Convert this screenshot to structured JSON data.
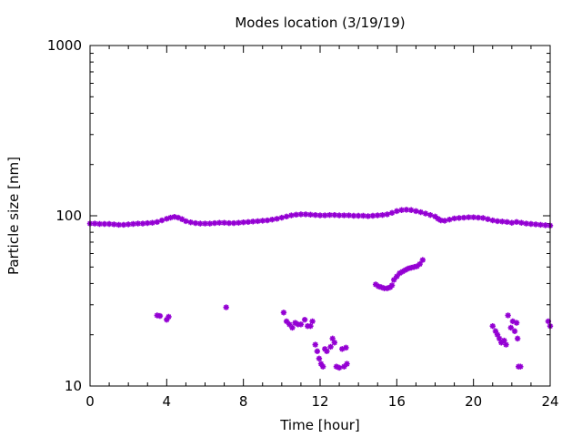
{
  "chart_data": {
    "type": "scatter",
    "title": "Modes location (3/19/19)",
    "xlabel": "Time [hour]",
    "ylabel": "Particle size [nm]",
    "xlim": [
      0,
      24
    ],
    "ylim": [
      10,
      1000
    ],
    "yscale": "log",
    "xticks": [
      0,
      4,
      8,
      12,
      16,
      20,
      24
    ],
    "xtick_labels": [
      "0",
      "4",
      "8",
      "12",
      "16",
      "20",
      "24"
    ],
    "yticks": [
      10,
      100,
      1000
    ],
    "ytick_labels": [
      "10",
      "100",
      "1000"
    ],
    "grid": false,
    "legend": "none",
    "marker_color": "#9400d3",
    "series": [
      {
        "points": [
          [
            0.0,
            90
          ],
          [
            0.25,
            90
          ],
          [
            0.5,
            89.5
          ],
          [
            0.75,
            89.5
          ],
          [
            1.0,
            89.5
          ],
          [
            1.25,
            89
          ],
          [
            1.5,
            88.5
          ],
          [
            1.75,
            88.5
          ],
          [
            2.0,
            89
          ],
          [
            2.25,
            89.5
          ],
          [
            2.5,
            90
          ],
          [
            2.75,
            90
          ],
          [
            3.0,
            90.5
          ],
          [
            3.25,
            91
          ],
          [
            3.5,
            92
          ],
          [
            3.75,
            94
          ],
          [
            4.0,
            96
          ],
          [
            4.2,
            97.5
          ],
          [
            4.4,
            98.5
          ],
          [
            4.6,
            97.5
          ],
          [
            4.8,
            95.5
          ],
          [
            5.0,
            93
          ],
          [
            5.25,
            91.5
          ],
          [
            5.5,
            90.5
          ],
          [
            5.75,
            90
          ],
          [
            6.0,
            90
          ],
          [
            6.25,
            90
          ],
          [
            6.5,
            90.5
          ],
          [
            6.75,
            91
          ],
          [
            7.0,
            91
          ],
          [
            7.25,
            90.5
          ],
          [
            7.5,
            90.5
          ],
          [
            7.75,
            91
          ],
          [
            8.0,
            91.5
          ],
          [
            8.25,
            92
          ],
          [
            8.5,
            92.5
          ],
          [
            8.75,
            93
          ],
          [
            9.0,
            93.5
          ],
          [
            9.25,
            94
          ],
          [
            9.5,
            95
          ],
          [
            9.75,
            96
          ],
          [
            10.0,
            97.5
          ],
          [
            10.25,
            99
          ],
          [
            10.5,
            100.5
          ],
          [
            10.75,
            101.5
          ],
          [
            11.0,
            102
          ],
          [
            11.25,
            102
          ],
          [
            11.5,
            101.5
          ],
          [
            11.75,
            101
          ],
          [
            12.0,
            100.5
          ],
          [
            12.25,
            100.5
          ],
          [
            12.5,
            101
          ],
          [
            12.75,
            101
          ],
          [
            13.0,
            100.5
          ],
          [
            13.25,
            100.5
          ],
          [
            13.5,
            100.5
          ],
          [
            13.75,
            100
          ],
          [
            14.0,
            100
          ],
          [
            14.25,
            100
          ],
          [
            14.5,
            99.5
          ],
          [
            14.75,
            100
          ],
          [
            15.0,
            100.5
          ],
          [
            15.25,
            101
          ],
          [
            15.5,
            102
          ],
          [
            15.75,
            104
          ],
          [
            16.0,
            106.5
          ],
          [
            16.25,
            108
          ],
          [
            16.5,
            108.5
          ],
          [
            16.75,
            108
          ],
          [
            17.0,
            106.5
          ],
          [
            17.25,
            105
          ],
          [
            17.5,
            103
          ],
          [
            17.75,
            101
          ],
          [
            18.0,
            99
          ],
          [
            18.15,
            96
          ],
          [
            18.3,
            94
          ],
          [
            18.5,
            93.5
          ],
          [
            18.75,
            95
          ],
          [
            19.0,
            96.5
          ],
          [
            19.25,
            97
          ],
          [
            19.5,
            97.5
          ],
          [
            19.75,
            98
          ],
          [
            20.0,
            98
          ],
          [
            20.25,
            97.5
          ],
          [
            20.5,
            97
          ],
          [
            20.75,
            95.5
          ],
          [
            21.0,
            94
          ],
          [
            21.25,
            93
          ],
          [
            21.5,
            92.5
          ],
          [
            21.75,
            92
          ],
          [
            22.0,
            91
          ],
          [
            22.25,
            92
          ],
          [
            22.5,
            91
          ],
          [
            22.75,
            90
          ],
          [
            23.0,
            89.5
          ],
          [
            23.25,
            89
          ],
          [
            23.5,
            88.5
          ],
          [
            23.75,
            88
          ],
          [
            24.0,
            87.5
          ],
          [
            3.5,
            26
          ],
          [
            3.65,
            25.8
          ],
          [
            4.0,
            24.5
          ],
          [
            4.1,
            25.5
          ],
          [
            7.1,
            29
          ],
          [
            10.1,
            27
          ],
          [
            10.25,
            24
          ],
          [
            10.4,
            23
          ],
          [
            10.55,
            22
          ],
          [
            10.7,
            23.5
          ],
          [
            10.85,
            23
          ],
          [
            11.0,
            23
          ],
          [
            11.2,
            24.5
          ],
          [
            11.35,
            22.5
          ],
          [
            11.5,
            22.5
          ],
          [
            11.6,
            24
          ],
          [
            11.75,
            17.5
          ],
          [
            11.85,
            16
          ],
          [
            11.95,
            14.5
          ],
          [
            12.05,
            13.5
          ],
          [
            12.15,
            13
          ],
          [
            12.25,
            16.5
          ],
          [
            12.35,
            16
          ],
          [
            12.55,
            17
          ],
          [
            12.65,
            19
          ],
          [
            12.75,
            18
          ],
          [
            12.85,
            13
          ],
          [
            13.0,
            12.8
          ],
          [
            13.15,
            16.5
          ],
          [
            13.25,
            13
          ],
          [
            13.35,
            16.8
          ],
          [
            13.4,
            13.5
          ],
          [
            14.9,
            39.5
          ],
          [
            15.05,
            38.5
          ],
          [
            15.2,
            38
          ],
          [
            15.35,
            37.5
          ],
          [
            15.5,
            37.5
          ],
          [
            15.65,
            38
          ],
          [
            15.75,
            39
          ],
          [
            15.85,
            42
          ],
          [
            16.0,
            44
          ],
          [
            16.15,
            46
          ],
          [
            16.3,
            47
          ],
          [
            16.45,
            48
          ],
          [
            16.6,
            49
          ],
          [
            16.75,
            49.5
          ],
          [
            16.9,
            50
          ],
          [
            17.05,
            50.5
          ],
          [
            17.2,
            52
          ],
          [
            17.35,
            55
          ],
          [
            21.0,
            22.5
          ],
          [
            21.15,
            21
          ],
          [
            21.25,
            20
          ],
          [
            21.35,
            19
          ],
          [
            21.45,
            18
          ],
          [
            21.6,
            18.5
          ],
          [
            21.7,
            17.5
          ],
          [
            21.8,
            26
          ],
          [
            21.95,
            22
          ],
          [
            22.05,
            24
          ],
          [
            22.15,
            21
          ],
          [
            22.25,
            23.5
          ],
          [
            22.3,
            19
          ],
          [
            22.35,
            13
          ],
          [
            22.45,
            13
          ],
          [
            23.9,
            24
          ],
          [
            24.0,
            22.5
          ]
        ]
      }
    ]
  }
}
